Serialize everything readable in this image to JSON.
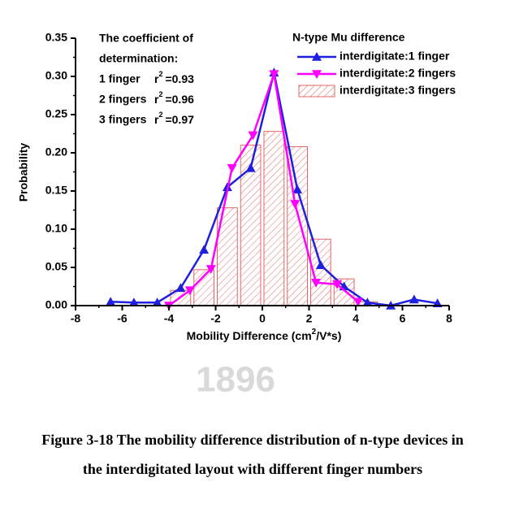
{
  "chart_data": {
    "type": "histogram",
    "ylabel": "Probability",
    "xlabel": [
      "Mobility Difference (cm",
      "2",
      "/V*s)"
    ],
    "xlim": [
      -8,
      8
    ],
    "xticks": [
      -8,
      -6,
      -4,
      -2,
      0,
      2,
      4,
      6,
      8
    ],
    "ylim": [
      0,
      0.35
    ],
    "yticks": [
      {
        "value": 0,
        "label": "0.00"
      },
      {
        "value": 0.05,
        "label": "0.05"
      },
      {
        "value": 0.1,
        "label": "0.10"
      },
      {
        "value": 0.15,
        "label": "0.15"
      },
      {
        "value": 0.2,
        "label": "0.20"
      },
      {
        "value": 0.25,
        "label": "0.25"
      },
      {
        "value": 0.3,
        "label": "0.30"
      },
      {
        "value": 0.35,
        "label": "0.35"
      }
    ],
    "annotation": {
      "title": [
        "The coefficient of",
        "determination:"
      ],
      "rows": [
        {
          "label": "1 finger",
          "stat": "r",
          "sup": "2",
          "value": "=0.93"
        },
        {
          "label": "2 fingers",
          "stat": "r",
          "sup": "2",
          "value": "=0.96"
        },
        {
          "label": "3 fingers",
          "stat": "r",
          "sup": "2",
          "value": "=0.97"
        }
      ]
    },
    "legend_title": "N-type Mu difference",
    "histogram": {
      "name": "interdigitate:3 fingers",
      "color": "#e06666",
      "bins": [
        -4,
        -3,
        -2,
        -1,
        0,
        1,
        2,
        3,
        4,
        5
      ],
      "values": [
        0.02,
        0.047,
        0.128,
        0.21,
        0.228,
        0.208,
        0.087,
        0.035,
        0.005
      ]
    },
    "series": [
      {
        "name": "interdigitate:1 finger",
        "color": "#1f1fe0",
        "marker": "up",
        "x": [
          -6.5,
          -5.5,
          -4.5,
          -3.5,
          -2.5,
          -1.5,
          -0.5,
          0.5,
          1.5,
          2.5,
          3.5,
          4.5,
          5.5,
          6.5,
          7.5
        ],
        "values": [
          0.005,
          0.004,
          0.004,
          0.023,
          0.073,
          0.155,
          0.18,
          0.305,
          0.152,
          0.053,
          0.025,
          0.004,
          0,
          0.008,
          0.003
        ]
      },
      {
        "name": "interdigitate:2 fingers",
        "color": "#ff00ff",
        "marker": "down",
        "x": [
          -4,
          -3.1,
          -2.2,
          -1.3,
          -0.4,
          0.5,
          1.4,
          2.3,
          3.2,
          4.1
        ],
        "values": [
          0,
          0.02,
          0.048,
          0.18,
          0.223,
          0.303,
          0.133,
          0.03,
          0.028,
          0.005
        ]
      }
    ]
  },
  "watermark": "1896",
  "caption": [
    "Figure 3-18 The mobility difference distribution of n-type devices in",
    "the interdigitated layout with different finger numbers"
  ]
}
